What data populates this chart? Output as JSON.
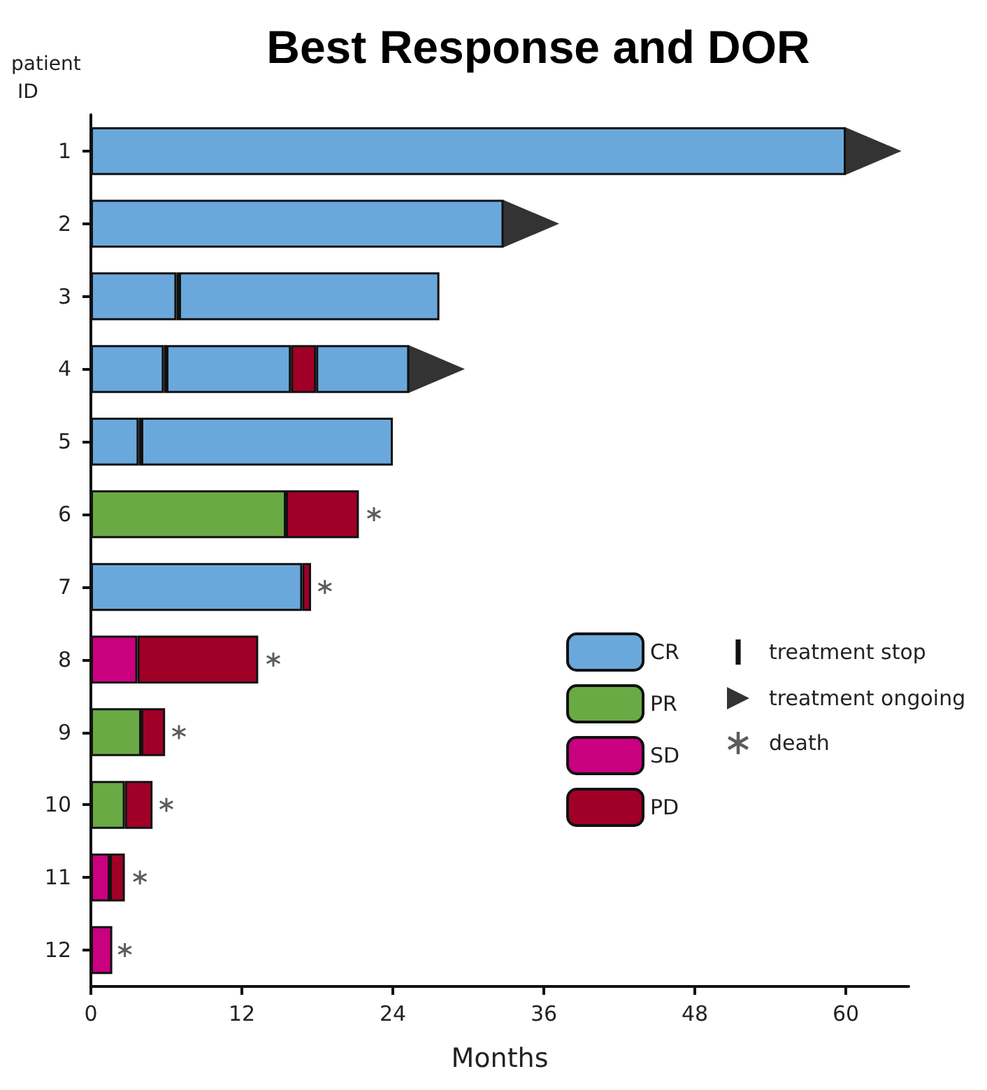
{
  "chart_data": {
    "type": "bar",
    "title": "Best Response and DOR",
    "xlabel": "Months",
    "ylabel": "patient ID",
    "orientation": "horizontal",
    "stacked": true,
    "categories": [
      "1",
      "2",
      "3",
      "4",
      "5",
      "6",
      "7",
      "8",
      "9",
      "10",
      "11",
      "12"
    ],
    "xlim": [
      0,
      65
    ],
    "xticks": [
      0,
      12,
      24,
      36,
      48,
      60
    ],
    "grid": false,
    "legend": "right",
    "series": [
      {
        "name": "CR",
        "color": "#6aa8dc",
        "values": [
          60,
          32.8,
          6.8,
          5.8,
          3.8,
          null,
          16.8,
          null,
          null,
          null,
          null,
          null
        ]
      },
      {
        "name": "treatment stop",
        "color": "#000000",
        "values": [
          null,
          null,
          0.2,
          0.2,
          0.2,
          null,
          null,
          null,
          null,
          null,
          null,
          null
        ]
      },
      {
        "color": "#6aa8dc",
        "values": [
          null,
          null,
          20.7,
          9.9,
          20.0,
          null,
          null,
          null,
          null,
          null,
          null,
          null
        ]
      },
      {
        "name": "PR",
        "color": "#6aaa45",
        "values": [
          null,
          null,
          null,
          null,
          null,
          15.5,
          null,
          null,
          4.0,
          2.7,
          null,
          null
        ]
      },
      {
        "name": "SD",
        "color": "#c9007f",
        "values": [
          null,
          null,
          null,
          null,
          null,
          null,
          null,
          3.7,
          null,
          null,
          1.5,
          1.7
        ]
      },
      {
        "name": "PD",
        "color": "#a00028",
        "values": [
          null,
          null,
          null,
          2.0,
          null,
          5.8,
          0.7,
          9.6,
          1.9,
          2.2,
          1.2,
          null
        ]
      },
      {
        "color": "#6aa8dc",
        "values": [
          null,
          null,
          null,
          7.4,
          null,
          null,
          null,
          null,
          null,
          null,
          null,
          null
        ]
      },
      {
        "name": "treatment ongoing",
        "type": "scatter",
        "marker": "triangle",
        "color": "#000000",
        "values": [
          62.2,
          35.0,
          null,
          27.5,
          null,
          null,
          null,
          null,
          null,
          null,
          null,
          null
        ]
      },
      {
        "name": "death",
        "type": "scatter",
        "marker": "cross",
        "color": "#333333",
        "values": [
          null,
          null,
          null,
          null,
          null,
          22.5,
          18.6,
          14.5,
          7.0,
          6.0,
          3.9,
          2.7
        ]
      }
    ]
  }
}
